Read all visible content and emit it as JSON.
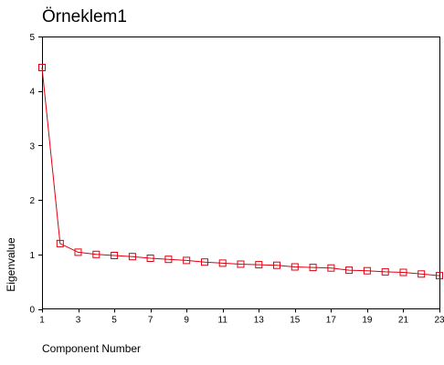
{
  "chart_data": {
    "type": "line",
    "title": "Örneklem1",
    "xlabel": "Component Number",
    "ylabel": "Eigenvalue",
    "xlim": [
      1,
      23
    ],
    "ylim": [
      0,
      5
    ],
    "x_ticks": [
      1,
      3,
      5,
      7,
      9,
      11,
      13,
      15,
      17,
      19,
      21,
      23
    ],
    "y_ticks": [
      0,
      1,
      2,
      3,
      4,
      5
    ],
    "grid": false,
    "legend": "none",
    "series": [
      {
        "color": "#e0000f",
        "marker": "square",
        "x": [
          1,
          2,
          3,
          4,
          5,
          6,
          7,
          8,
          9,
          10,
          11,
          12,
          13,
          14,
          15,
          16,
          17,
          18,
          19,
          20,
          21,
          22,
          23
        ],
        "y": [
          4.43,
          1.2,
          1.04,
          1.0,
          0.98,
          0.96,
          0.93,
          0.91,
          0.89,
          0.86,
          0.84,
          0.82,
          0.81,
          0.8,
          0.77,
          0.76,
          0.75,
          0.71,
          0.7,
          0.68,
          0.67,
          0.64,
          0.61
        ]
      }
    ]
  }
}
